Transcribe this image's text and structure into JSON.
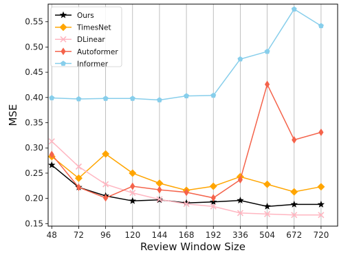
{
  "chart_data": {
    "type": "line",
    "xlabel": "Review Window Size",
    "ylabel": "MSE",
    "categories": [
      "48",
      "72",
      "96",
      "120",
      "144",
      "168",
      "192",
      "336",
      "504",
      "672",
      "720"
    ],
    "ylim": [
      0.145,
      0.585
    ],
    "yticks": [
      "0.15",
      "0.20",
      "0.25",
      "0.30",
      "0.35",
      "0.40",
      "0.45",
      "0.50",
      "0.55"
    ],
    "grid": "vertical",
    "legend_position": "top-left",
    "series": [
      {
        "name": "Ours",
        "color": "#000000",
        "marker": "star",
        "values": [
          0.266,
          0.222,
          0.205,
          0.195,
          0.197,
          0.191,
          0.193,
          0.196,
          0.184,
          0.188,
          0.188
        ]
      },
      {
        "name": "TimesNet",
        "color": "#ffa500",
        "marker": "diamond",
        "values": [
          0.283,
          0.24,
          0.288,
          0.25,
          0.23,
          0.216,
          0.224,
          0.243,
          0.228,
          0.213,
          0.223
        ]
      },
      {
        "name": "DLinear",
        "color": "#ffb6c1",
        "marker": "x",
        "values": [
          0.313,
          0.263,
          0.228,
          0.211,
          0.198,
          0.189,
          0.184,
          0.171,
          0.169,
          0.167,
          0.167
        ]
      },
      {
        "name": "Autoformer",
        "color": "#f4634b",
        "marker": "thin-diamond",
        "values": [
          0.287,
          0.222,
          0.201,
          0.224,
          0.217,
          0.212,
          0.201,
          0.237,
          0.426,
          0.316,
          0.331
        ]
      },
      {
        "name": "Informer",
        "color": "#87ceeb",
        "marker": "pentagon",
        "values": [
          0.399,
          0.397,
          0.398,
          0.398,
          0.395,
          0.403,
          0.404,
          0.476,
          0.491,
          0.575,
          0.542
        ]
      }
    ]
  }
}
